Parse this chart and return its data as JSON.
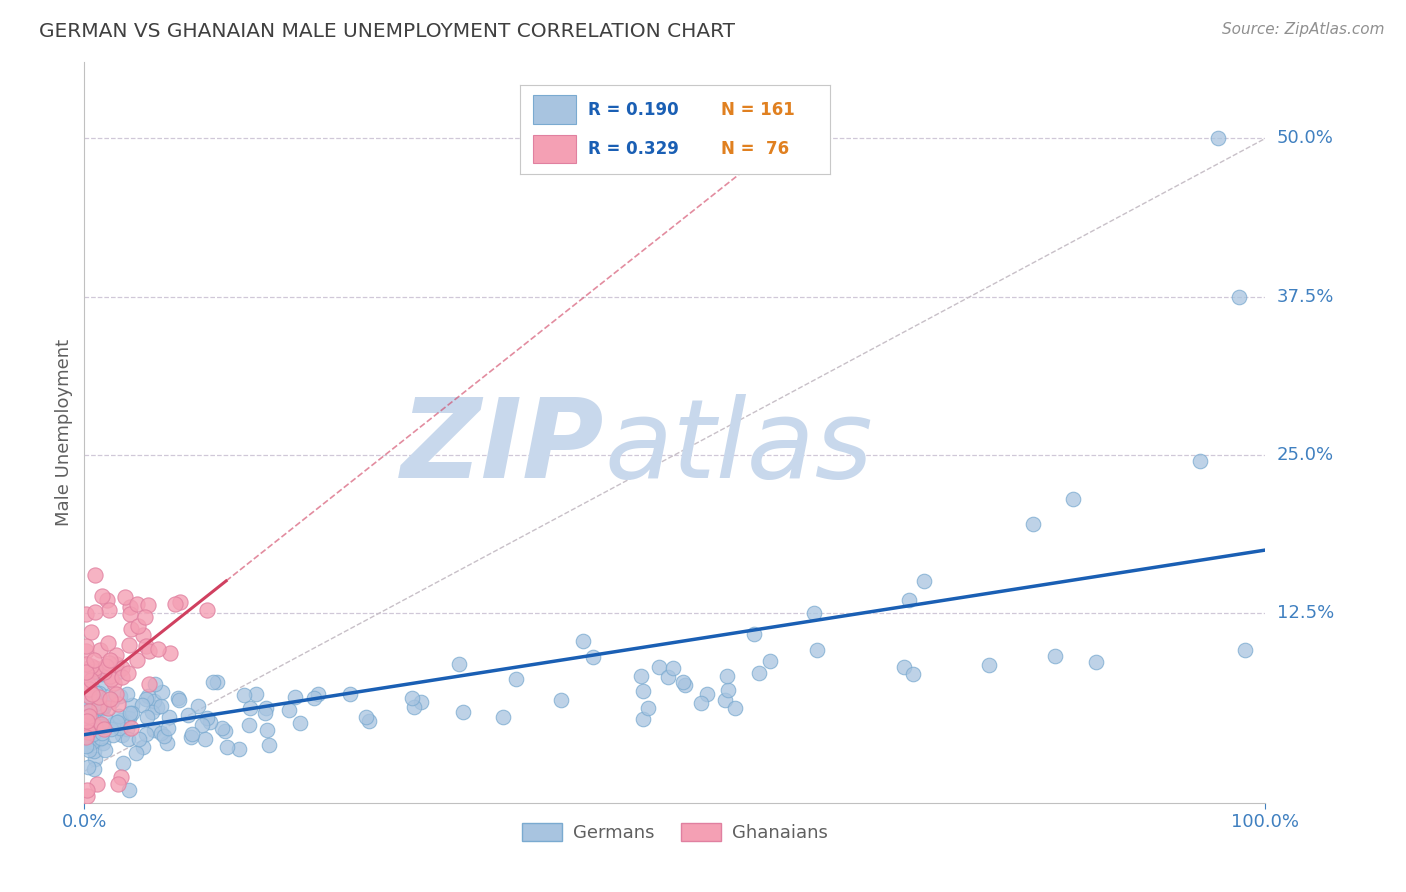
{
  "title": "GERMAN VS GHANAIAN MALE UNEMPLOYMENT CORRELATION CHART",
  "source": "Source: ZipAtlas.com",
  "ylabel": "Male Unemployment",
  "xlim": [
    0.0,
    1.0
  ],
  "ylim": [
    -0.025,
    0.56
  ],
  "german_color": "#a8c4e0",
  "german_edge_color": "#7aaad0",
  "ghanaian_color": "#f4a0b4",
  "ghanaian_edge_color": "#e080a0",
  "german_line_color": "#1a5fb4",
  "ghanaian_line_color": "#d04060",
  "ref_line_color": "#c8c0c8",
  "watermark_zip": "ZIP",
  "watermark_atlas": "atlas",
  "watermark_color": "#c8d8ec",
  "background_color": "#ffffff",
  "grid_color": "#d0c8d8",
  "title_color": "#404040",
  "label_color": "#606060",
  "axis_tick_color": "#4080c0",
  "N_color": "#e08020",
  "legend_R_color": "#1a5fb4",
  "n_german": 161,
  "n_ghanaian": 76
}
